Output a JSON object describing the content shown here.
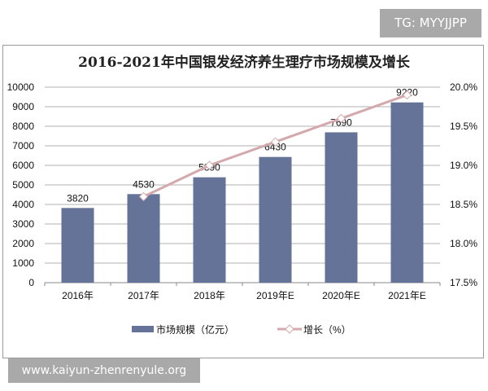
{
  "watermarks": {
    "top": "TG: MYYJJPP",
    "bottom": "www.kaiyun-zhenrenyule.org"
  },
  "chart_data": {
    "type": "bar+line",
    "title": "2016-2021年中国银发经济养生理疗市场规模及增长",
    "categories": [
      "2016年",
      "2017年",
      "2018年",
      "2019年E",
      "2020年E",
      "2021年E"
    ],
    "series": [
      {
        "name": "市场规模（亿元）",
        "type": "bar",
        "axis": "left",
        "values": [
          3820,
          4530,
          5390,
          6430,
          7690,
          9220
        ],
        "color": "#667399"
      },
      {
        "name": "增长（%）",
        "type": "line",
        "axis": "right",
        "values": [
          null,
          18.6,
          19.0,
          19.3,
          19.6,
          19.9
        ],
        "color": "#d4a9ad",
        "marker": "diamond"
      }
    ],
    "y_left": {
      "range": [
        0,
        10000
      ],
      "ticks": [
        0,
        1000,
        2000,
        3000,
        4000,
        5000,
        6000,
        7000,
        8000,
        9000,
        10000
      ]
    },
    "y_right": {
      "range": [
        17.5,
        20.0
      ],
      "ticks": [
        "17.5%",
        "18.0%",
        "18.5%",
        "19.0%",
        "19.5%",
        "20.0%"
      ]
    },
    "grid": true,
    "legend": "bottom"
  }
}
